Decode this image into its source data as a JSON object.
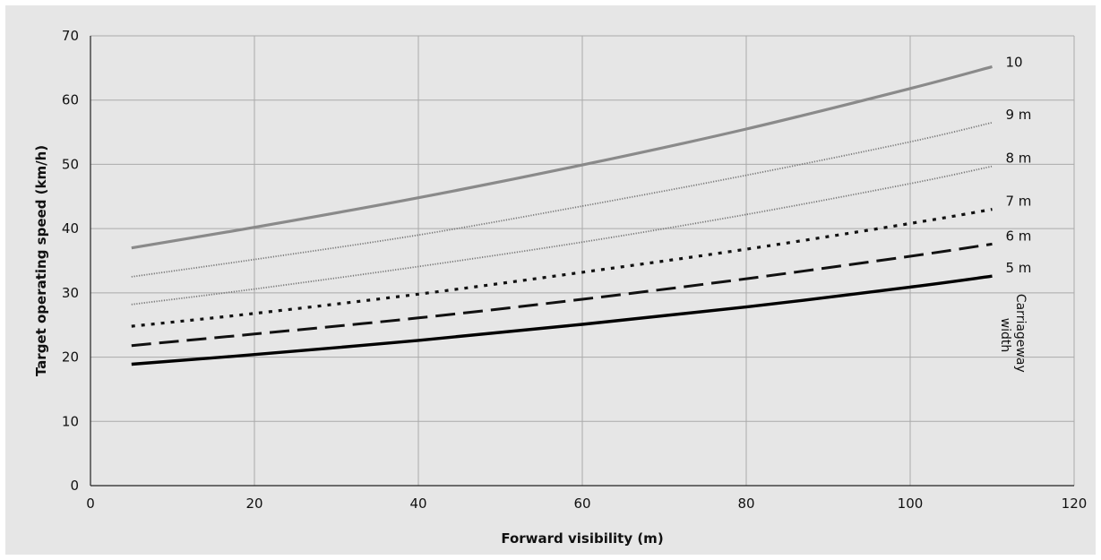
{
  "chart_data": {
    "type": "line",
    "xlabel": "Forward visibility (m)",
    "ylabel": "Target operating speed (km/h)",
    "xlim": [
      0,
      120
    ],
    "ylim": [
      0,
      70
    ],
    "x_ticks": [
      0,
      20,
      40,
      60,
      80,
      100,
      120
    ],
    "y_ticks": [
      0,
      10,
      20,
      30,
      40,
      50,
      60,
      70
    ],
    "grid": true,
    "annotation": [
      "Carriageway",
      "width"
    ],
    "x": [
      5,
      20,
      40,
      60,
      80,
      100,
      110
    ],
    "series": [
      {
        "name": "10",
        "values": [
          37,
          40.2,
          44.8,
          49.9,
          55.5,
          61.8,
          65.2
        ],
        "color": "#8a8a8a",
        "style": "solid-gray"
      },
      {
        "name": "9 m",
        "values": [
          32.5,
          35.2,
          39.0,
          43.5,
          48.3,
          53.5,
          56.5
        ],
        "color": "#777777",
        "style": "fine-dotted"
      },
      {
        "name": "8 m",
        "values": [
          28.2,
          30.6,
          34.1,
          37.9,
          42.2,
          47.0,
          49.7
        ],
        "color": "#777777",
        "style": "fine-dotted"
      },
      {
        "name": "7 m",
        "values": [
          24.8,
          26.8,
          29.8,
          33.2,
          36.8,
          40.8,
          43.0
        ],
        "color": "#111111",
        "style": "dotted"
      },
      {
        "name": "6 m",
        "values": [
          21.8,
          23.6,
          26.1,
          29.0,
          32.2,
          35.7,
          37.6
        ],
        "color": "#111111",
        "style": "dashed"
      },
      {
        "name": "5 m",
        "values": [
          18.9,
          20.4,
          22.6,
          25.1,
          27.8,
          30.9,
          32.6
        ],
        "color": "#000000",
        "style": "solid"
      }
    ]
  }
}
